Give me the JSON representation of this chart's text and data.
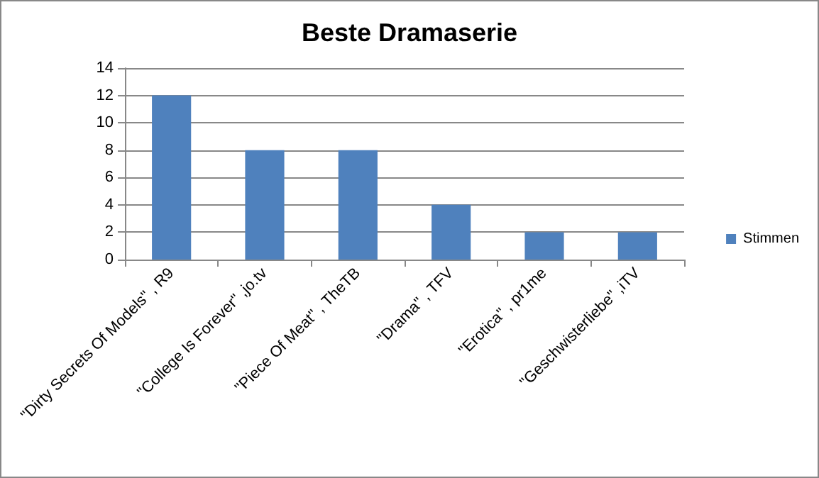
{
  "chart_data": {
    "type": "bar",
    "title": "Beste Dramaserie",
    "categories": [
      "\"Dirty Secrets Of Models\" , R9",
      "\"College Is Forever\" ,jo.tv",
      "\"Piece Of Meat\" , TheTB",
      "\"Drama\" , TFV",
      "\"Erotica\" , pr1me",
      "\"Geschwisterliebe\" ,iTV"
    ],
    "series": [
      {
        "name": "Stimmen",
        "color": "#4f81bd",
        "values": [
          12,
          8,
          8,
          4,
          2,
          2
        ]
      }
    ],
    "ylim": [
      0,
      14
    ],
    "yticks": [
      0,
      2,
      4,
      6,
      8,
      10,
      12,
      14
    ],
    "grid": "y",
    "legend": "right"
  }
}
